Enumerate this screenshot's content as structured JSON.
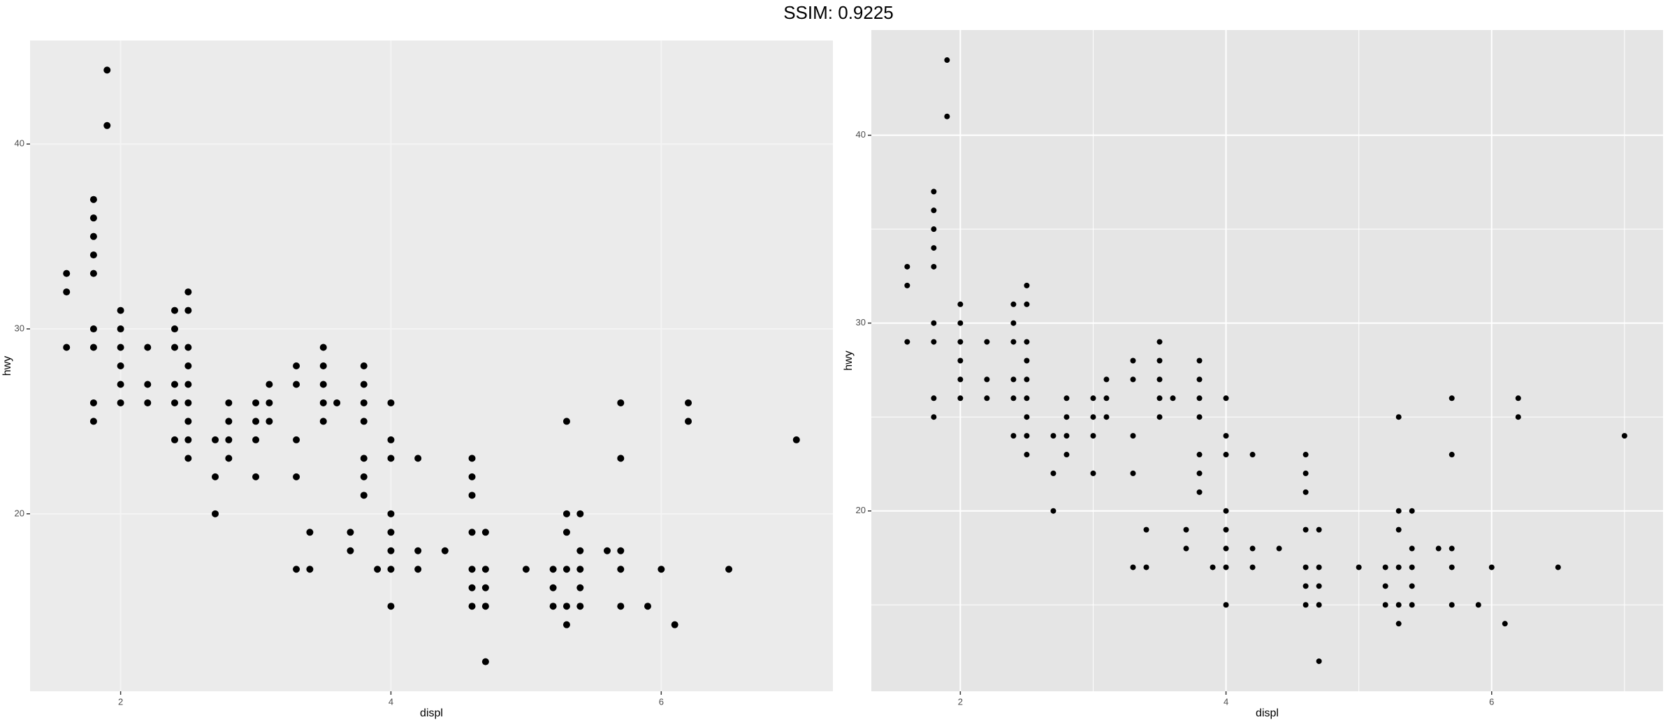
{
  "title": "SSIM: 0.9225",
  "chart_data": [
    {
      "type": "scatter",
      "x_label": "displ",
      "y_label": "hwy",
      "x": [
        1.6,
        1.6,
        1.6,
        1.8,
        1.8,
        1.8,
        1.8,
        1.8,
        1.8,
        1.8,
        1.8,
        1.8,
        1.9,
        1.9,
        2,
        2,
        2,
        2,
        2,
        2,
        2.2,
        2.2,
        2.2,
        2.4,
        2.4,
        2.4,
        2.4,
        2.4,
        2.4,
        2.5,
        2.5,
        2.5,
        2.5,
        2.5,
        2.5,
        2.5,
        2.5,
        2.5,
        2.7,
        2.7,
        2.7,
        2.8,
        2.8,
        2.8,
        2.8,
        3,
        3,
        3,
        3,
        3.1,
        3.1,
        3.1,
        3.3,
        3.3,
        3.3,
        3.3,
        3.3,
        3.4,
        3.4,
        3.5,
        3.5,
        3.5,
        3.5,
        3.5,
        3.6,
        3.7,
        3.7,
        3.8,
        3.8,
        3.8,
        3.8,
        3.8,
        3.8,
        3.8,
        3.9,
        4,
        4,
        4,
        4,
        4,
        4,
        4,
        4,
        4.2,
        4.2,
        4.2,
        4.4,
        4.6,
        4.6,
        4.6,
        4.6,
        4.6,
        4.6,
        4.6,
        4.7,
        4.7,
        4.7,
        4.7,
        4.7,
        5,
        5.2,
        5.2,
        5.2,
        5.3,
        5.3,
        5.3,
        5.3,
        5.3,
        5.3,
        5.4,
        5.4,
        5.4,
        5.4,
        5.4,
        5.6,
        5.7,
        5.7,
        5.7,
        5.7,
        5.7,
        5.9,
        6,
        6.1,
        6.2,
        6.2,
        6.5,
        7
      ],
      "values": [
        33,
        32,
        29,
        37,
        36,
        35,
        34,
        33,
        30,
        29,
        26,
        25,
        44,
        41,
        31,
        30,
        29,
        28,
        27,
        26,
        29,
        27,
        26,
        31,
        30,
        29,
        27,
        26,
        24,
        32,
        31,
        29,
        28,
        27,
        26,
        25,
        24,
        23,
        24,
        22,
        20,
        26,
        25,
        24,
        23,
        26,
        25,
        24,
        22,
        27,
        26,
        25,
        28,
        27,
        24,
        22,
        17,
        19,
        17,
        29,
        28,
        27,
        26,
        25,
        26,
        19,
        18,
        28,
        27,
        26,
        25,
        23,
        22,
        21,
        17,
        26,
        24,
        23,
        20,
        19,
        18,
        17,
        15,
        23,
        18,
        17,
        18,
        23,
        22,
        21,
        19,
        17,
        16,
        15,
        19,
        17,
        16,
        15,
        12,
        17,
        17,
        16,
        15,
        25,
        20,
        19,
        17,
        15,
        14,
        20,
        18,
        17,
        16,
        15,
        18,
        26,
        23,
        18,
        17,
        15,
        15,
        17,
        14,
        26,
        25,
        17,
        24
      ],
      "color": "#000000",
      "point_size": 5,
      "xlim": [
        1.33,
        7.27
      ],
      "ylim": [
        10.4,
        45.6
      ],
      "xticks": [
        2,
        4,
        6
      ],
      "yticks": [
        20,
        30,
        40
      ],
      "grid": true,
      "background": "#ebebeb",
      "grid_color": "#f4f4f4"
    },
    {
      "type": "scatter",
      "x_label": "displ",
      "y_label": "hwy",
      "x": [
        1.6,
        1.6,
        1.6,
        1.8,
        1.8,
        1.8,
        1.8,
        1.8,
        1.8,
        1.8,
        1.8,
        1.8,
        1.9,
        1.9,
        2,
        2,
        2,
        2,
        2,
        2,
        2.2,
        2.2,
        2.2,
        2.4,
        2.4,
        2.4,
        2.4,
        2.4,
        2.4,
        2.5,
        2.5,
        2.5,
        2.5,
        2.5,
        2.5,
        2.5,
        2.5,
        2.5,
        2.7,
        2.7,
        2.7,
        2.8,
        2.8,
        2.8,
        2.8,
        3,
        3,
        3,
        3,
        3.1,
        3.1,
        3.1,
        3.3,
        3.3,
        3.3,
        3.3,
        3.3,
        3.4,
        3.4,
        3.5,
        3.5,
        3.5,
        3.5,
        3.5,
        3.6,
        3.7,
        3.7,
        3.8,
        3.8,
        3.8,
        3.8,
        3.8,
        3.8,
        3.8,
        3.9,
        4,
        4,
        4,
        4,
        4,
        4,
        4,
        4,
        4.2,
        4.2,
        4.2,
        4.4,
        4.6,
        4.6,
        4.6,
        4.6,
        4.6,
        4.6,
        4.6,
        4.7,
        4.7,
        4.7,
        4.7,
        4.7,
        5,
        5.2,
        5.2,
        5.2,
        5.3,
        5.3,
        5.3,
        5.3,
        5.3,
        5.3,
        5.4,
        5.4,
        5.4,
        5.4,
        5.4,
        5.6,
        5.7,
        5.7,
        5.7,
        5.7,
        5.7,
        5.9,
        6,
        6.1,
        6.2,
        6.2,
        6.5,
        7
      ],
      "values": [
        33,
        32,
        29,
        37,
        36,
        35,
        34,
        33,
        30,
        29,
        26,
        25,
        44,
        41,
        31,
        30,
        29,
        28,
        27,
        26,
        29,
        27,
        26,
        31,
        30,
        29,
        27,
        26,
        24,
        32,
        31,
        29,
        28,
        27,
        26,
        25,
        24,
        23,
        24,
        22,
        20,
        26,
        25,
        24,
        23,
        26,
        25,
        24,
        22,
        27,
        26,
        25,
        28,
        27,
        24,
        22,
        17,
        19,
        17,
        29,
        28,
        27,
        26,
        25,
        26,
        19,
        18,
        28,
        27,
        26,
        25,
        23,
        22,
        21,
        17,
        26,
        24,
        23,
        20,
        19,
        18,
        17,
        15,
        23,
        18,
        17,
        18,
        23,
        22,
        21,
        19,
        17,
        16,
        15,
        19,
        17,
        16,
        15,
        12,
        17,
        17,
        16,
        15,
        25,
        20,
        19,
        17,
        15,
        14,
        20,
        18,
        17,
        16,
        15,
        18,
        26,
        23,
        18,
        17,
        15,
        15,
        17,
        14,
        26,
        25,
        17,
        24
      ],
      "color": "#000000",
      "point_size": 4,
      "xlim": [
        1.33,
        7.29
      ],
      "ylim": [
        10.4,
        45.6
      ],
      "xticks": [
        2,
        4,
        6
      ],
      "yticks": [
        20,
        30,
        40
      ],
      "minor_xticks": [
        3,
        5,
        7
      ],
      "minor_yticks": [
        15,
        25,
        35
      ],
      "grid": true,
      "background": "#e5e5e5",
      "grid_color": "#ffffff"
    }
  ]
}
